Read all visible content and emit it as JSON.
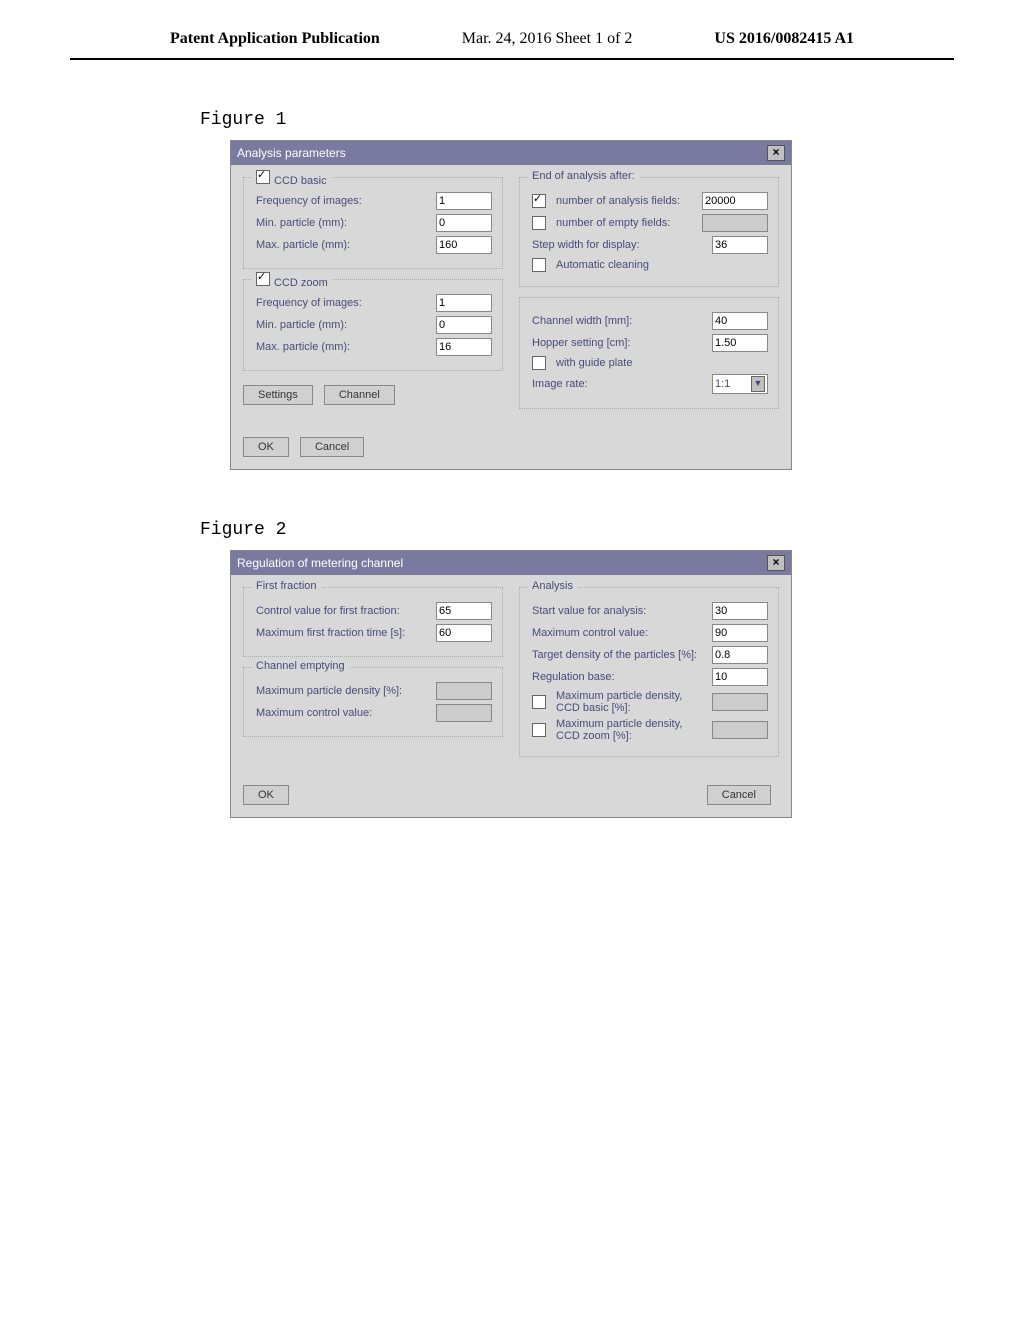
{
  "header": {
    "left": "Patent Application Publication",
    "center": "Mar. 24, 2016  Sheet 1 of 2",
    "right": "US 2016/0082415 A1"
  },
  "figure1": {
    "label": "Figure 1",
    "title": "Analysis parameters",
    "ccd_basic": {
      "legend": "CCD basic",
      "freq_label": "Frequency of images:",
      "freq_val": "1",
      "min_label": "Min. particle (mm):",
      "min_val": "0",
      "max_label": "Max. particle (mm):",
      "max_val": "160"
    },
    "ccd_zoom": {
      "legend": "CCD zoom",
      "freq_label": "Frequency of images:",
      "freq_val": "1",
      "min_label": "Min. particle (mm):",
      "min_val": "0",
      "max_label": "Max. particle (mm):",
      "max_val": "16"
    },
    "end_legend": "End of analysis after:",
    "num_fields_label": "number of analysis fields:",
    "num_fields_val": "20000",
    "num_empty_label": "number of empty fields:",
    "num_empty_val": "",
    "step_label": "Step width for display:",
    "step_val": "36",
    "auto_clean": "Automatic cleaning",
    "channel_width_label": "Channel width [mm]:",
    "channel_width_val": "40",
    "hopper_label": "Hopper setting [cm]:",
    "hopper_val": "1.50",
    "guide_plate": "with guide plate",
    "image_rate_label": "Image rate:",
    "image_rate_val": "1:1",
    "btn_settings": "Settings",
    "btn_channel": "Channel",
    "btn_ok": "OK",
    "btn_cancel": "Cancel"
  },
  "figure2": {
    "label": "Figure 2",
    "title": "Regulation of metering channel",
    "first_fraction": {
      "legend": "First fraction",
      "ctrl_label": "Control value for first fraction:",
      "ctrl_val": "65",
      "max_time_label": "Maximum first fraction time [s]:",
      "max_time_val": "60"
    },
    "channel_empty": {
      "legend": "Channel emptying",
      "max_density_label": "Maximum particle density [%]:",
      "max_density_val": "",
      "max_ctrl_label": "Maximum control value:",
      "max_ctrl_val": ""
    },
    "analysis": {
      "legend": "Analysis",
      "start_label": "Start value for analysis:",
      "start_val": "30",
      "max_ctrl_label": "Maximum control value:",
      "max_ctrl_val": "90",
      "target_label": "Target density of the particles [%]:",
      "target_val": "0.8",
      "reg_base_label": "Regulation base:",
      "reg_base_val": "10",
      "max_basic_label": "Maximum particle density, CCD basic [%]:",
      "max_basic_val": "",
      "max_zoom_label": "Maximum particle density, CCD zoom [%]:",
      "max_zoom_val": ""
    },
    "btn_ok": "OK",
    "btn_cancel": "Cancel"
  }
}
